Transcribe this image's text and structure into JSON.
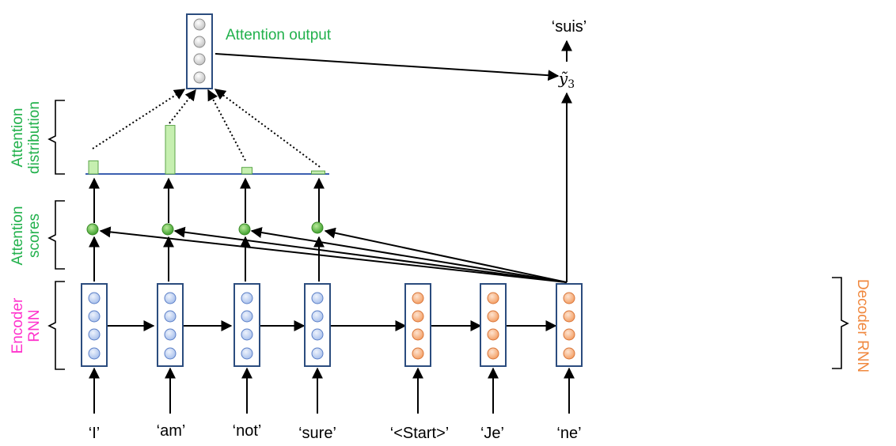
{
  "labels": {
    "attention_output": "Attention output",
    "attention_distribution": [
      "Attention",
      "distribution"
    ],
    "attention_scores": [
      "Attention",
      "scores"
    ],
    "encoder_rnn": [
      "Encoder",
      "RNN"
    ],
    "decoder_rnn": "Decoder RNN",
    "output_word": "‘suis’",
    "output_var": "ỹ",
    "output_sub": "3"
  },
  "encoder_words": [
    "‘I’",
    "‘am’",
    "‘not’",
    "‘sure’"
  ],
  "decoder_words": [
    "‘<Start>’",
    "‘Je’",
    "‘ne’"
  ],
  "attention_weights": [
    0.26,
    0.96,
    0.13,
    0.06
  ],
  "colors": {
    "green_label": "#22b14c",
    "encoder_label": "#ff33cc",
    "decoder_label": "#f0883e",
    "box_border": "#2b4c7e",
    "encoder_fill": "#b8cdf0",
    "decoder_fill": "#f7b183",
    "bar_fill": "#c6efb0",
    "bar_stroke": "#5ca64a",
    "score_fill": "#5dbb3f",
    "baseline": "#3b5fb0"
  }
}
